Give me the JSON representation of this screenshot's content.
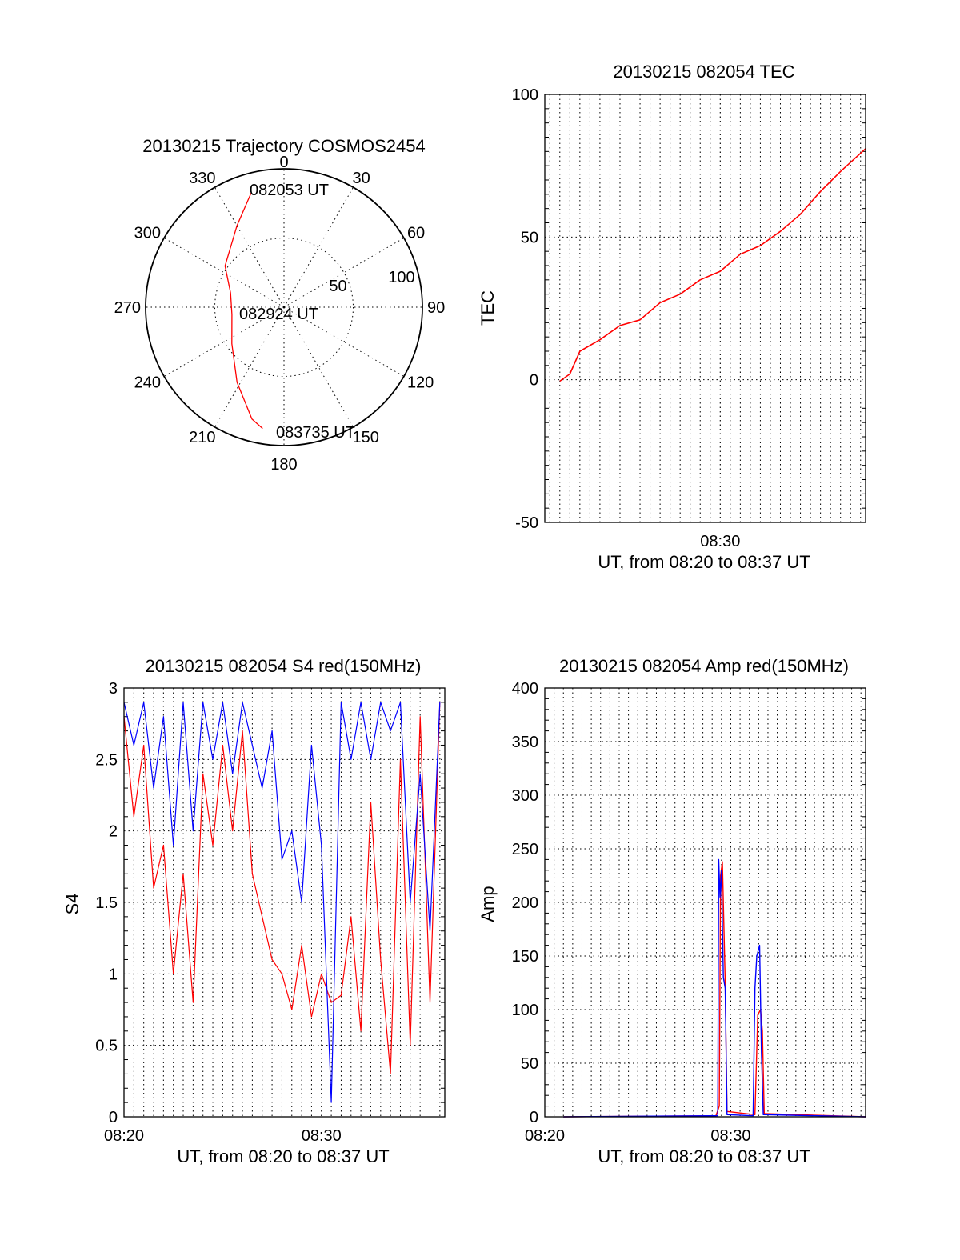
{
  "chart_data": [
    {
      "id": "trajectory",
      "type": "polar-line",
      "title": "20130215 Trajectory COSMOS2454",
      "azimuth_labels": [
        "0",
        "30",
        "60",
        "90",
        "120",
        "150",
        "180",
        "210",
        "240",
        "270",
        "300",
        "330"
      ],
      "azimuth_ticks_deg": [
        0,
        30,
        60,
        90,
        120,
        150,
        180,
        210,
        240,
        270,
        300,
        330
      ],
      "radial_labels": [
        "50",
        "100"
      ],
      "radial_ticks": [
        50,
        100
      ],
      "rlim": [
        0,
        100
      ],
      "grid": true,
      "annotations": [
        "082053 UT",
        "082924 UT",
        "083735 UT"
      ],
      "series": [
        {
          "color": "#ff0000",
          "points": [
            {
              "az": 344,
              "r": 86
            },
            {
              "az": 330,
              "r": 68
            },
            {
              "az": 305,
              "r": 52
            },
            {
              "az": 285,
              "r": 40
            },
            {
              "az": 262,
              "r": 38
            },
            {
              "az": 235,
              "r": 46
            },
            {
              "az": 212,
              "r": 64
            },
            {
              "az": 196,
              "r": 84
            },
            {
              "az": 190,
              "r": 89
            }
          ]
        }
      ]
    },
    {
      "id": "tec",
      "type": "line",
      "title": "20130215 082054 TEC",
      "ylabel": "TEC",
      "xlabel": "UT, from 08:20 to 08:37 UT",
      "x_unit": "minutes after 08:20",
      "xlim": [
        1.25,
        17.25
      ],
      "ylim": [
        -50,
        100
      ],
      "yticks": [
        -50,
        0,
        50,
        100
      ],
      "xtick_positions": [
        10
      ],
      "xtick_labels": [
        "08:30"
      ],
      "grid": true,
      "series": [
        {
          "color": "#ff0000",
          "x": [
            2.0,
            2.5,
            3.0,
            4.0,
            5.0,
            6.0,
            7.0,
            8.0,
            9.0,
            10.0,
            11.0,
            12.0,
            13.0,
            14.0,
            15.0,
            16.0,
            17.25
          ],
          "y": [
            -0.5,
            2,
            10,
            14,
            19,
            21,
            27,
            30,
            35,
            38,
            44,
            47,
            52,
            58,
            66,
            73,
            81
          ]
        }
      ]
    },
    {
      "id": "s4",
      "type": "line",
      "title": "20130215 082054 S4 red(150MHz)",
      "ylabel": "S4",
      "xlabel": "UT, from 08:20 to 08:37 UT",
      "x_unit": "minutes after 08:20",
      "xlim": [
        0,
        16.25
      ],
      "ylim": [
        0,
        3
      ],
      "yticks": [
        0,
        0.5,
        1,
        1.5,
        2,
        2.5,
        3
      ],
      "ytick_labels": [
        "0",
        "0.5",
        "1",
        "1.5",
        "2",
        "2.5",
        "3"
      ],
      "xtick_positions": [
        0,
        10
      ],
      "xtick_labels": [
        "08:20",
        "08:30"
      ],
      "grid": true,
      "series": [
        {
          "color": "#ff0000",
          "x": [
            0.0,
            0.5,
            1.0,
            1.5,
            2.0,
            2.5,
            3.0,
            3.5,
            4.0,
            4.5,
            5.0,
            5.5,
            6.0,
            6.5,
            7.0,
            7.5,
            8.0,
            8.5,
            9.0,
            9.5,
            10.0,
            10.5,
            11.0,
            11.5,
            12.0,
            12.5,
            13.0,
            13.5,
            14.0,
            14.5,
            15.0,
            15.5,
            16.0
          ],
          "y": [
            2.8,
            2.1,
            2.6,
            1.6,
            1.9,
            1.0,
            1.7,
            0.8,
            2.4,
            1.9,
            2.6,
            2.0,
            2.7,
            1.7,
            1.4,
            1.1,
            1.0,
            0.75,
            1.2,
            0.7,
            1.0,
            0.8,
            0.85,
            1.4,
            0.6,
            2.2,
            1.1,
            0.3,
            2.5,
            0.5,
            2.8,
            0.8,
            2.9
          ]
        },
        {
          "color": "#0000ff",
          "x": [
            0.0,
            0.5,
            1.0,
            1.5,
            2.0,
            2.5,
            3.0,
            3.5,
            4.0,
            4.5,
            5.0,
            5.5,
            6.0,
            6.5,
            7.0,
            7.5,
            8.0,
            8.5,
            9.0,
            9.5,
            10.0,
            10.5,
            11.0,
            11.5,
            12.0,
            12.5,
            13.0,
            13.5,
            14.0,
            14.5,
            15.0,
            15.5,
            16.0
          ],
          "y": [
            2.9,
            2.6,
            2.9,
            2.3,
            2.8,
            1.9,
            2.9,
            2.0,
            2.9,
            2.5,
            2.9,
            2.4,
            2.9,
            2.6,
            2.3,
            2.7,
            1.8,
            2.0,
            1.5,
            2.6,
            1.9,
            0.1,
            2.9,
            2.5,
            2.9,
            2.5,
            2.9,
            2.7,
            2.9,
            1.5,
            2.4,
            1.3,
            2.9
          ]
        }
      ]
    },
    {
      "id": "amp",
      "type": "line",
      "title": "20130215 082054 Amp red(150MHz)",
      "ylabel": "Amp",
      "xlabel": "UT, from 08:20 to 08:37 UT",
      "x_unit": "minutes after 08:20",
      "xlim": [
        0,
        17.25
      ],
      "ylim": [
        0,
        400
      ],
      "yticks": [
        0,
        50,
        100,
        150,
        200,
        250,
        300,
        350,
        400
      ],
      "xtick_positions": [
        0,
        10
      ],
      "xtick_labels": [
        "08:20",
        "08:30"
      ],
      "grid": true,
      "series": [
        {
          "color": "#ff0000",
          "x": [
            1.0,
            9.2,
            9.38,
            9.45,
            9.55,
            9.7,
            9.8,
            11.3,
            11.45,
            11.6,
            11.7,
            11.8,
            17.25
          ],
          "y": [
            0,
            1,
            10,
            225,
            238,
            125,
            5,
            2,
            95,
            100,
            80,
            3,
            0
          ]
        },
        {
          "color": "#0000ff",
          "x": [
            1.0,
            9.3,
            9.35,
            9.42,
            9.5,
            9.6,
            9.7,
            9.8,
            11.2,
            11.3,
            11.4,
            11.55,
            11.65,
            11.75,
            17.25
          ],
          "y": [
            0,
            1,
            240,
            205,
            230,
            130,
            120,
            2,
            1,
            120,
            150,
            160,
            60,
            2,
            0
          ]
        }
      ]
    }
  ]
}
